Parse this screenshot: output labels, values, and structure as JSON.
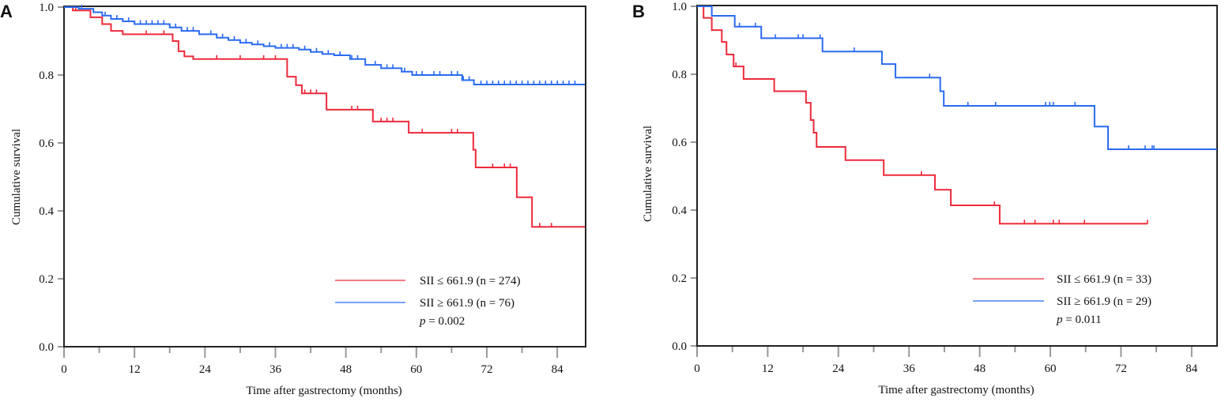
{
  "colors": {
    "red": "#ee2a3a",
    "blue": "#2a6bf0",
    "axis": "#222222",
    "tick": "#999999"
  },
  "chart_data": [
    {
      "panel_label": "A",
      "type": "line",
      "subtype": "kaplan-meier step",
      "xlabel": "Time after gastrectomy (months)",
      "ylabel": "Cumulative survival",
      "xlim": [
        0,
        88.7
      ],
      "ylim": [
        0,
        1
      ],
      "xticks": [
        "0",
        "12",
        "24",
        "36",
        "48",
        "60",
        "72",
        "84"
      ],
      "yticks": [
        "0.0",
        "0.2",
        "0.4",
        "0.6",
        "0.8",
        "1.0"
      ],
      "grid": false,
      "legend_position": "bottom-right",
      "legend": [
        {
          "text": "SII ≤ 661.9 (n = 274)",
          "color": "red"
        },
        {
          "text": "SII ≥ 661.9 (n = 76)",
          "color": "blue"
        }
      ],
      "p_label": "p",
      "p_value": "= 0.002",
      "series": [
        {
          "color": "red",
          "end": 88.7,
          "steps": [
            [
              0,
              1.0
            ],
            [
              1.5,
              0.99
            ],
            [
              4.5,
              0.97
            ],
            [
              6.5,
              0.95
            ],
            [
              8,
              0.93
            ],
            [
              10,
              0.92
            ],
            [
              18.5,
              0.9
            ],
            [
              19.5,
              0.87
            ],
            [
              20.5,
              0.855
            ],
            [
              22,
              0.847
            ],
            [
              38,
              0.795
            ],
            [
              39.5,
              0.77
            ],
            [
              40.5,
              0.746
            ],
            [
              44.7,
              0.698
            ],
            [
              52.6,
              0.663
            ],
            [
              58.7,
              0.63
            ],
            [
              69.7,
              0.58
            ],
            [
              70.1,
              0.528
            ],
            [
              77.1,
              0.44
            ],
            [
              79.7,
              0.353
            ]
          ],
          "censored": [
            2,
            14,
            17,
            26,
            30,
            34,
            36,
            41,
            42,
            43,
            49,
            50,
            54,
            55,
            56,
            61,
            66,
            67,
            73,
            75,
            76,
            81,
            83
          ]
        },
        {
          "color": "blue",
          "end": 88.7,
          "steps": [
            [
              0,
              1.0
            ],
            [
              2.5,
              0.995
            ],
            [
              5,
              0.985
            ],
            [
              6.5,
              0.975
            ],
            [
              8,
              0.965
            ],
            [
              10,
              0.958
            ],
            [
              12,
              0.95
            ],
            [
              18,
              0.94
            ],
            [
              20,
              0.93
            ],
            [
              23,
              0.92
            ],
            [
              26,
              0.91
            ],
            [
              28,
              0.903
            ],
            [
              30,
              0.895
            ],
            [
              32,
              0.89
            ],
            [
              34,
              0.885
            ],
            [
              36,
              0.88
            ],
            [
              40,
              0.875
            ],
            [
              42,
              0.868
            ],
            [
              44,
              0.862
            ],
            [
              46,
              0.858
            ],
            [
              48.7,
              0.847
            ],
            [
              51.3,
              0.83
            ],
            [
              54,
              0.82
            ],
            [
              57.5,
              0.81
            ],
            [
              59.3,
              0.8
            ],
            [
              67.8,
              0.785
            ],
            [
              69.8,
              0.772
            ]
          ],
          "censored": [
            3,
            7,
            9,
            11,
            13,
            14,
            15,
            16,
            17,
            19,
            21,
            22,
            25,
            27,
            29,
            31,
            33,
            35,
            37,
            38,
            39,
            41,
            43,
            45,
            47,
            49,
            50,
            53,
            55,
            56,
            58,
            60,
            61,
            63,
            64,
            66,
            67,
            68,
            69,
            71,
            72,
            73,
            74,
            75,
            76,
            77,
            78,
            79,
            80,
            81,
            82,
            83,
            84,
            85,
            86,
            87
          ]
        }
      ]
    },
    {
      "panel_label": "B",
      "type": "line",
      "subtype": "kaplan-meier step",
      "xlabel": "Time after gastrectomy (months)",
      "ylabel": "Cumulative survival",
      "xlim": [
        0,
        88.3
      ],
      "ylim": [
        0,
        1
      ],
      "xticks": [
        "0",
        "12",
        "24",
        "36",
        "48",
        "60",
        "72",
        "84"
      ],
      "yticks": [
        "0.0",
        "0.2",
        "0.4",
        "0.6",
        "0.8",
        "1.0"
      ],
      "grid": false,
      "legend_position": "bottom-right",
      "legend": [
        {
          "text": "SII ≤ 661.9 (n = 33)",
          "color": "red"
        },
        {
          "text": "SII ≥ 661.9 (n = 29)",
          "color": "blue"
        }
      ],
      "p_label": "p",
      "p_value": "= 0.011",
      "series": [
        {
          "color": "red",
          "end": 76.5,
          "steps": [
            [
              0,
              1.0
            ],
            [
              1.1,
              0.966
            ],
            [
              2.5,
              0.93
            ],
            [
              4.2,
              0.895
            ],
            [
              5,
              0.858
            ],
            [
              6.2,
              0.823
            ],
            [
              7.9,
              0.786
            ],
            [
              13.1,
              0.75
            ],
            [
              18.5,
              0.716
            ],
            [
              19.3,
              0.665
            ],
            [
              19.8,
              0.628
            ],
            [
              20.3,
              0.586
            ],
            [
              25.2,
              0.547
            ],
            [
              31.7,
              0.503
            ],
            [
              40.4,
              0.46
            ],
            [
              43.1,
              0.414
            ],
            [
              51.4,
              0.36
            ]
          ],
          "censored": [
            6.6,
            38.1,
            50.5,
            55.6,
            57.4,
            60.5,
            61.5,
            65.8,
            76.5
          ]
        },
        {
          "color": "blue",
          "end": 88.3,
          "steps": [
            [
              0,
              1.0
            ],
            [
              2.5,
              0.972
            ],
            [
              6.4,
              0.94
            ],
            [
              10.9,
              0.906
            ],
            [
              21.3,
              0.867
            ],
            [
              31.4,
              0.83
            ],
            [
              33.7,
              0.79
            ],
            [
              41.3,
              0.75
            ],
            [
              41.9,
              0.707
            ],
            [
              67.5,
              0.646
            ],
            [
              69.8,
              0.579
            ]
          ],
          "censored": [
            7.2,
            9.9,
            13.3,
            17.2,
            18,
            20.9,
            26.7,
            39.5,
            46,
            50.7,
            59.2,
            59.9,
            60.5,
            64.2,
            73.3,
            76.1,
            77.3,
            77.6
          ]
        }
      ]
    }
  ]
}
